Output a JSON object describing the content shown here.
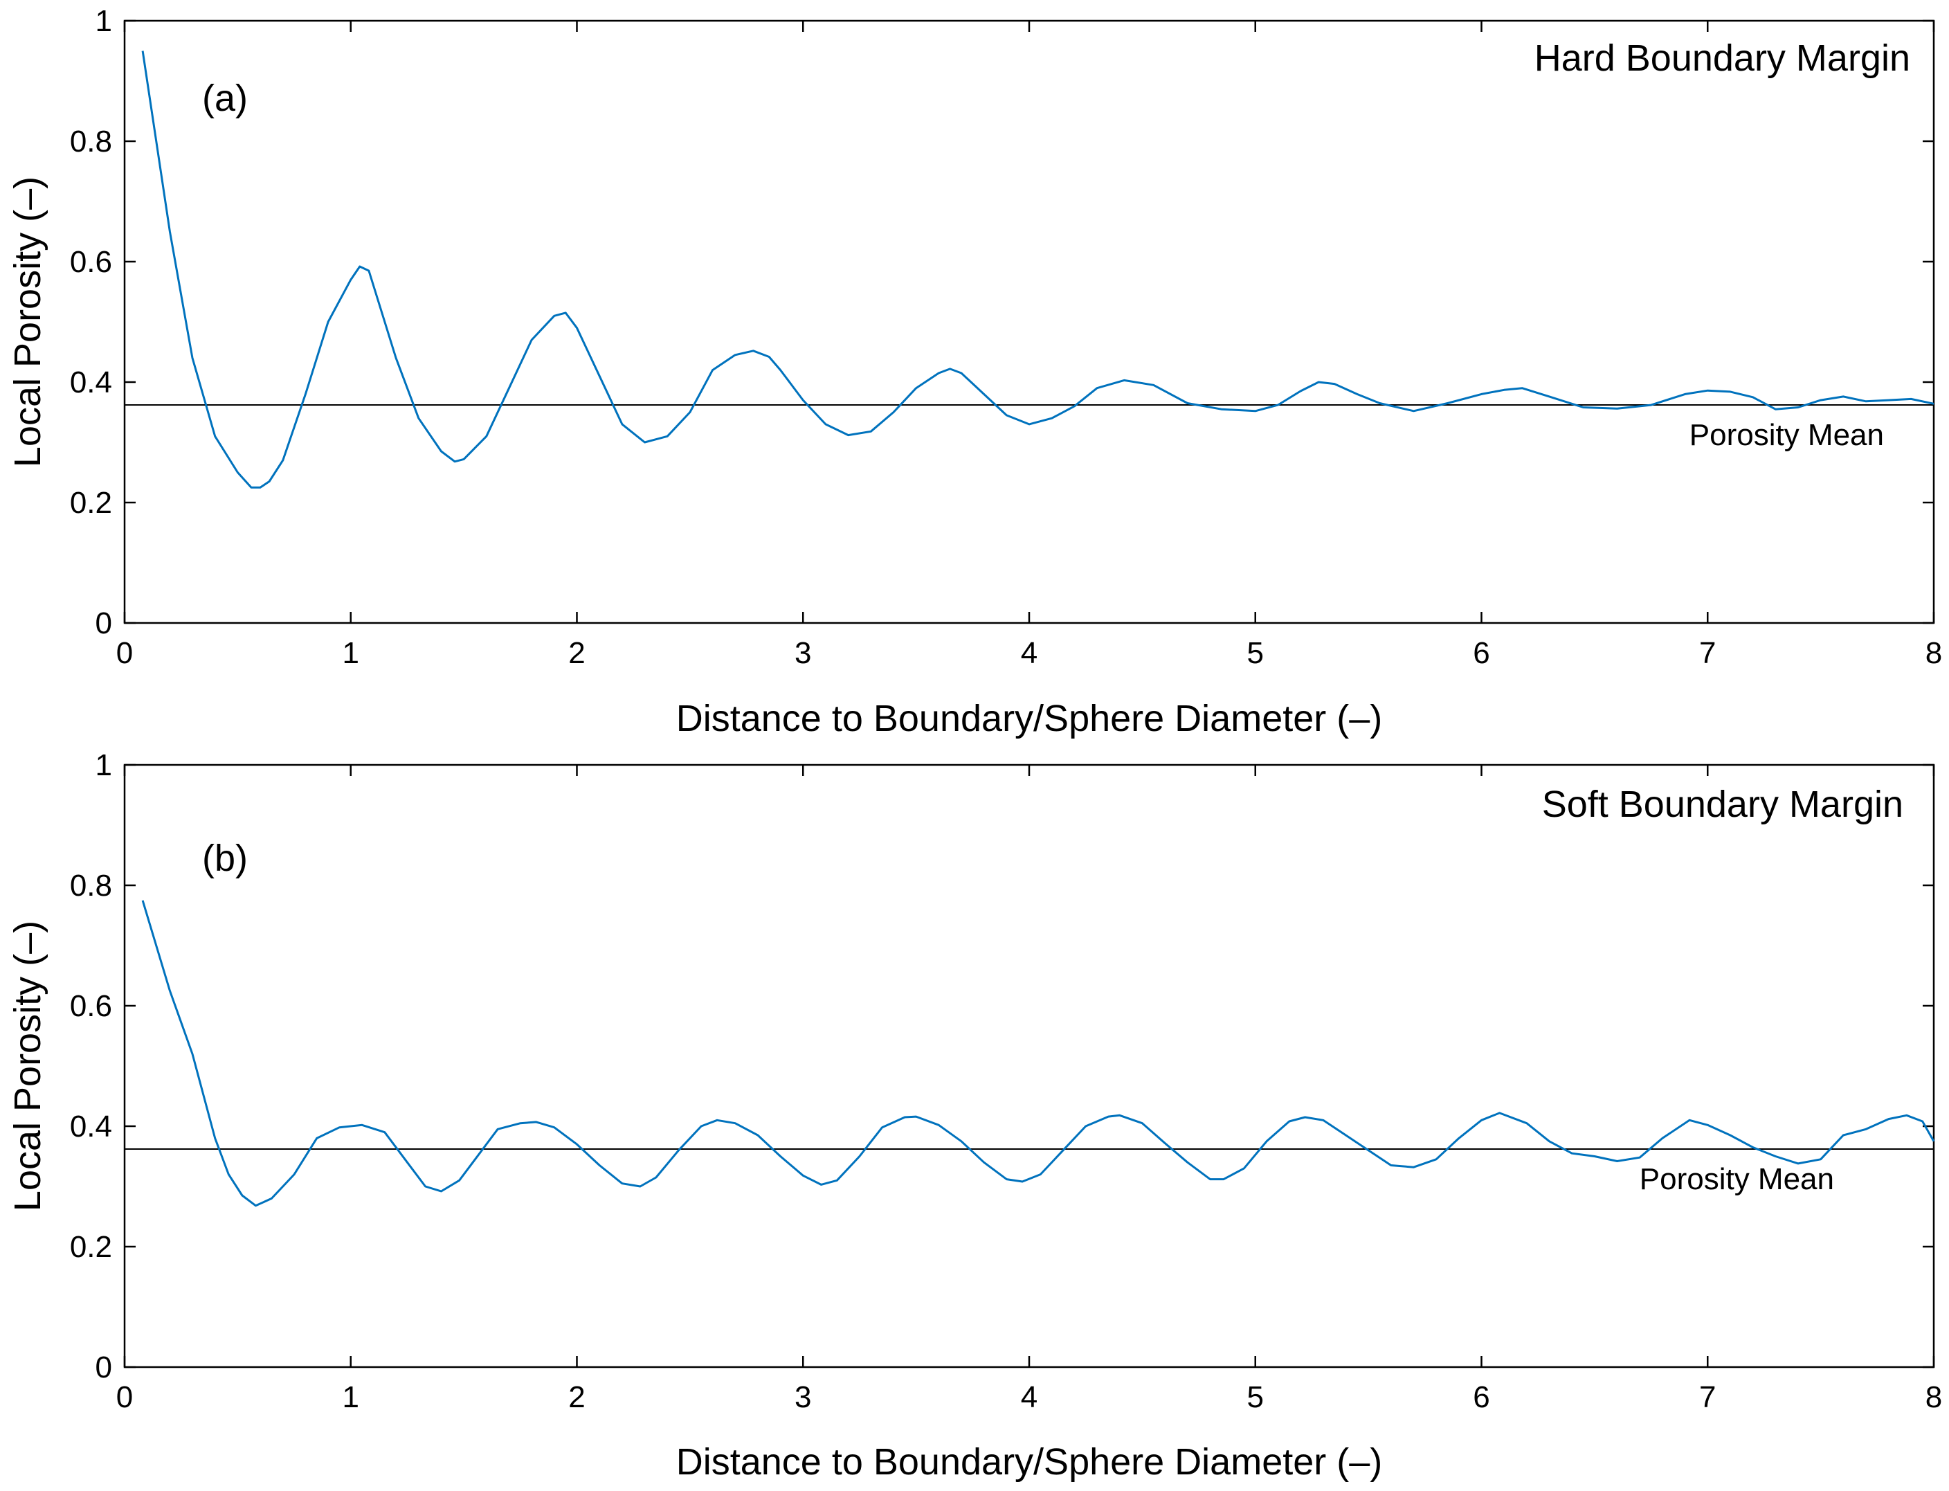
{
  "colors": {
    "series": "#0072BD",
    "mean_line": "#000000",
    "axes": "#000000",
    "background": "#ffffff"
  },
  "chart_data": [
    {
      "type": "line",
      "panel_label": "(a)",
      "annotation_title": "Hard Boundary Margin",
      "xlabel": "Distance to Boundary/Sphere Diameter (–)",
      "ylabel": "Local Porosity (–)",
      "xlim": [
        0,
        8
      ],
      "ylim": [
        0,
        1
      ],
      "xticks": [
        "0",
        "1",
        "2",
        "3",
        "4",
        "5",
        "6",
        "7",
        "8"
      ],
      "yticks": [
        "0",
        "0.2",
        "0.4",
        "0.6",
        "0.8",
        "1"
      ],
      "grid": false,
      "mean": {
        "value": 0.362,
        "label": "Porosity Mean"
      },
      "series": [
        {
          "x": [
            0.08,
            0.2,
            0.3,
            0.4,
            0.5,
            0.56,
            0.6,
            0.64,
            0.7,
            0.8,
            0.9,
            1.0,
            1.04,
            1.08,
            1.2,
            1.3,
            1.4,
            1.46,
            1.5,
            1.6,
            1.7,
            1.8,
            1.9,
            1.95,
            2.0,
            2.1,
            2.2,
            2.3,
            2.4,
            2.5,
            2.6,
            2.7,
            2.78,
            2.85,
            2.9,
            3.0,
            3.1,
            3.2,
            3.3,
            3.4,
            3.5,
            3.6,
            3.65,
            3.7,
            3.8,
            3.9,
            4.0,
            4.1,
            4.2,
            4.3,
            4.42,
            4.55,
            4.7,
            4.85,
            5.0,
            5.1,
            5.2,
            5.28,
            5.35,
            5.45,
            5.55,
            5.7,
            5.85,
            6.0,
            6.1,
            6.18,
            6.3,
            6.45,
            6.6,
            6.75,
            6.9,
            7.0,
            7.1,
            7.2,
            7.3,
            7.4,
            7.5,
            7.6,
            7.7,
            7.8,
            7.9,
            8.0
          ],
          "y": [
            0.95,
            0.65,
            0.44,
            0.31,
            0.25,
            0.225,
            0.225,
            0.235,
            0.27,
            0.38,
            0.5,
            0.57,
            0.592,
            0.585,
            0.44,
            0.34,
            0.285,
            0.268,
            0.272,
            0.31,
            0.39,
            0.47,
            0.51,
            0.515,
            0.49,
            0.41,
            0.33,
            0.3,
            0.31,
            0.35,
            0.42,
            0.445,
            0.452,
            0.442,
            0.42,
            0.37,
            0.33,
            0.312,
            0.318,
            0.35,
            0.39,
            0.415,
            0.422,
            0.415,
            0.38,
            0.345,
            0.33,
            0.34,
            0.36,
            0.39,
            0.403,
            0.395,
            0.365,
            0.355,
            0.352,
            0.362,
            0.385,
            0.4,
            0.397,
            0.38,
            0.365,
            0.352,
            0.365,
            0.38,
            0.387,
            0.39,
            0.376,
            0.358,
            0.356,
            0.362,
            0.38,
            0.386,
            0.384,
            0.375,
            0.355,
            0.358,
            0.37,
            0.376,
            0.368,
            0.37,
            0.372,
            0.364
          ]
        }
      ]
    },
    {
      "type": "line",
      "panel_label": "(b)",
      "annotation_title": "Soft Boundary Margin",
      "xlabel": "Distance to Boundary/Sphere Diameter (–)",
      "ylabel": "Local Porosity (–)",
      "xlim": [
        0,
        8
      ],
      "ylim": [
        0,
        1
      ],
      "xticks": [
        "0",
        "1",
        "2",
        "3",
        "4",
        "5",
        "6",
        "7",
        "8"
      ],
      "yticks": [
        "0",
        "0.2",
        "0.4",
        "0.6",
        "0.8",
        "1"
      ],
      "grid": false,
      "mean": {
        "value": 0.362,
        "label": "Porosity Mean"
      },
      "series": [
        {
          "x": [
            0.08,
            0.2,
            0.3,
            0.4,
            0.46,
            0.52,
            0.58,
            0.65,
            0.75,
            0.85,
            0.95,
            1.05,
            1.15,
            1.25,
            1.33,
            1.4,
            1.48,
            1.55,
            1.65,
            1.75,
            1.82,
            1.9,
            2.0,
            2.1,
            2.2,
            2.28,
            2.35,
            2.45,
            2.55,
            2.62,
            2.7,
            2.8,
            2.9,
            3.0,
            3.08,
            3.15,
            3.25,
            3.35,
            3.45,
            3.5,
            3.6,
            3.7,
            3.8,
            3.9,
            3.97,
            4.05,
            4.15,
            4.25,
            4.35,
            4.4,
            4.5,
            4.6,
            4.7,
            4.8,
            4.86,
            4.95,
            5.05,
            5.15,
            5.22,
            5.3,
            5.4,
            5.5,
            5.6,
            5.7,
            5.8,
            5.9,
            6.0,
            6.08,
            6.2,
            6.3,
            6.4,
            6.5,
            6.6,
            6.7,
            6.8,
            6.92,
            7.0,
            7.1,
            7.2,
            7.3,
            7.4,
            7.5,
            7.6,
            7.7,
            7.8,
            7.88,
            7.95,
            8.0
          ],
          "y": [
            0.775,
            0.625,
            0.52,
            0.38,
            0.32,
            0.285,
            0.268,
            0.28,
            0.32,
            0.38,
            0.398,
            0.402,
            0.39,
            0.34,
            0.3,
            0.292,
            0.31,
            0.345,
            0.395,
            0.405,
            0.407,
            0.398,
            0.37,
            0.335,
            0.305,
            0.3,
            0.315,
            0.36,
            0.4,
            0.41,
            0.405,
            0.385,
            0.35,
            0.318,
            0.303,
            0.31,
            0.35,
            0.398,
            0.415,
            0.416,
            0.402,
            0.375,
            0.34,
            0.312,
            0.308,
            0.32,
            0.36,
            0.4,
            0.416,
            0.418,
            0.405,
            0.372,
            0.34,
            0.312,
            0.312,
            0.33,
            0.375,
            0.408,
            0.415,
            0.41,
            0.385,
            0.36,
            0.335,
            0.332,
            0.345,
            0.38,
            0.41,
            0.422,
            0.405,
            0.375,
            0.355,
            0.35,
            0.342,
            0.348,
            0.38,
            0.41,
            0.402,
            0.385,
            0.365,
            0.35,
            0.338,
            0.345,
            0.385,
            0.395,
            0.412,
            0.418,
            0.408,
            0.375
          ]
        }
      ]
    }
  ]
}
